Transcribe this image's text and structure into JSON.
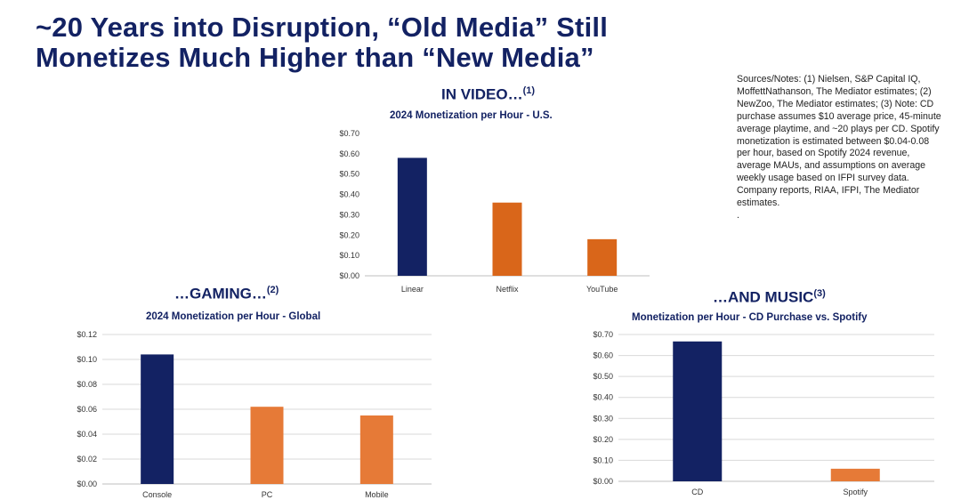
{
  "headline": {
    "line1": "~20 Years into Disruption, “Old Media” Still",
    "line2": "Monetizes Much Higher than “New Media”"
  },
  "notes": "Sources/Notes:  (1) Nielsen, S&P Capital IQ, MoffettNathanson, The Mediator estimates; (2) NewZoo, The Mediator estimates; (3) Note: CD purchase assumes $10 average price, 45-minute average playtime, and ~20 plays per CD. Spotify monetization is estimated between $0.04-0.08 per hour, based on Spotify 2024 revenue, average MAUs, and assumptions on average weekly usage based on IFPI survey data. Company reports, RIAA, IFPI, The Mediator estimates.",
  "notes_trailing": ".",
  "sections": {
    "video": {
      "label": "IN VIDEO…",
      "note": "(1)"
    },
    "gaming": {
      "label": "…GAMING…",
      "note": "(2)"
    },
    "music": {
      "label": "…AND MUSIC",
      "note": "(3)"
    }
  },
  "colors": {
    "navy": "#132263",
    "orange_video": "#d9661a",
    "orange": "#e67a37"
  },
  "chart_data": [
    {
      "id": "video",
      "type": "bar",
      "title": "2024 Monetization per Hour - U.S.",
      "categories": [
        "Linear",
        "Netflix",
        "YouTube"
      ],
      "values": [
        0.58,
        0.36,
        0.18
      ],
      "bar_colors": [
        "#132263",
        "#d9661a",
        "#d9661a"
      ],
      "ylim": [
        0,
        0.7
      ],
      "yticks": [
        "$0.00",
        "$0.10",
        "$0.20",
        "$0.30",
        "$0.40",
        "$0.50",
        "$0.60",
        "$0.70"
      ],
      "grid": false
    },
    {
      "id": "gaming",
      "type": "bar",
      "title": "2024 Monetization per Hour - Global",
      "categories": [
        "Console",
        "PC",
        "Mobile"
      ],
      "values": [
        0.104,
        0.062,
        0.055
      ],
      "bar_colors": [
        "#132263",
        "#e67a37",
        "#e67a37"
      ],
      "ylim": [
        0,
        0.12
      ],
      "yticks": [
        "$0.00",
        "$0.02",
        "$0.04",
        "$0.06",
        "$0.08",
        "$0.10",
        "$0.12"
      ],
      "grid": true
    },
    {
      "id": "music",
      "type": "bar",
      "title": "Monetization per Hour - CD Purchase vs. Spotify",
      "categories": [
        "CD",
        "Spotify"
      ],
      "values": [
        0.667,
        0.06
      ],
      "bar_colors": [
        "#132263",
        "#e67a37"
      ],
      "ylim": [
        0,
        0.7
      ],
      "yticks": [
        "$0.00",
        "$0.10",
        "$0.20",
        "$0.30",
        "$0.40",
        "$0.50",
        "$0.60",
        "$0.70"
      ],
      "grid": true
    }
  ]
}
